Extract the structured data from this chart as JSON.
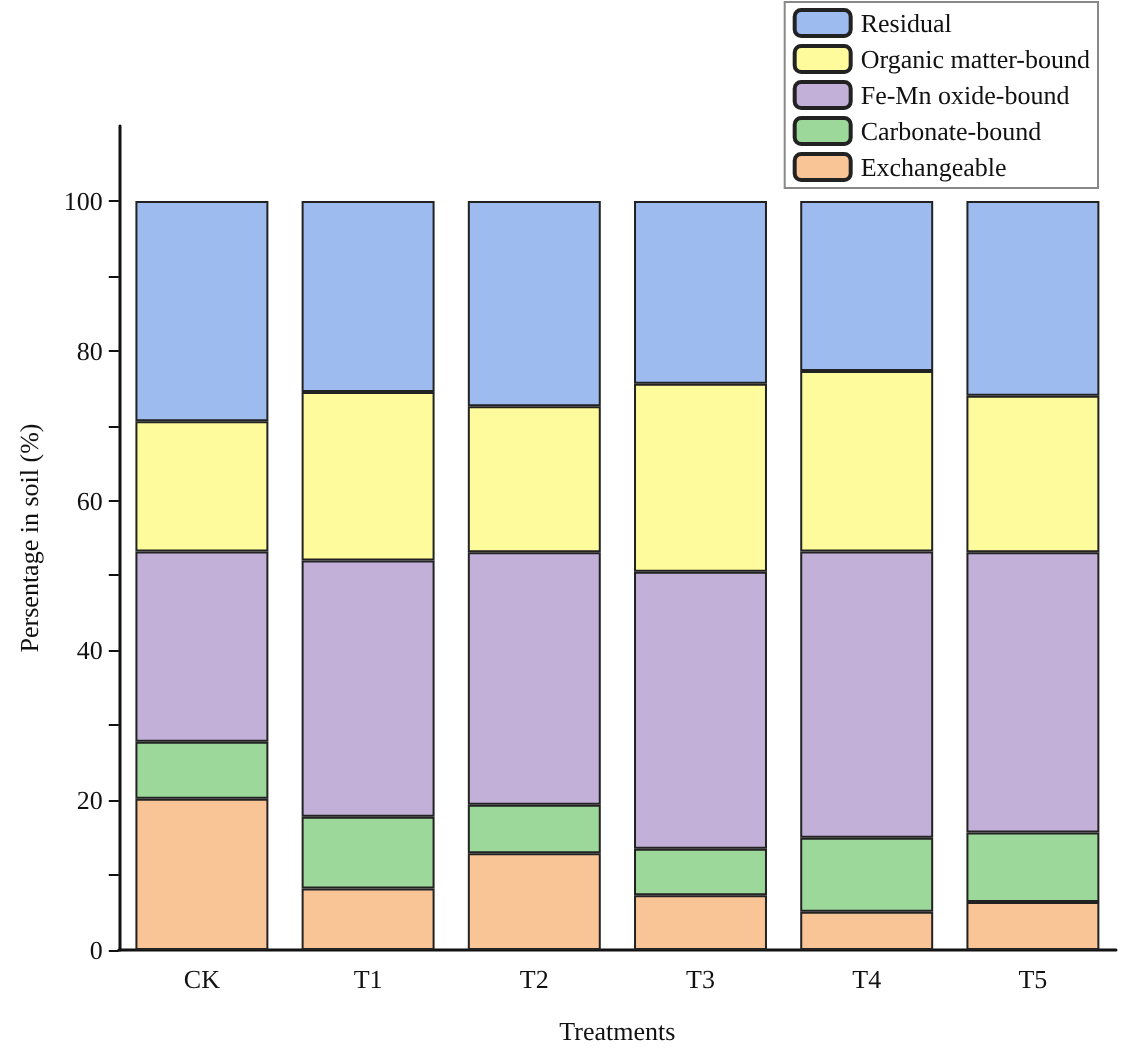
{
  "chart_data": {
    "type": "bar",
    "stacked": true,
    "xlabel": "Treatments",
    "ylabel": "Persentage in soil (%)",
    "categories": [
      "CK",
      "T1",
      "T2",
      "T3",
      "T4",
      "T5"
    ],
    "series": [
      {
        "name": "Exchangeable",
        "color": "#f9c597",
        "values": [
          20.2,
          8.2,
          12.9,
          7.3,
          5.1,
          6.4
        ]
      },
      {
        "name": "Carbonate-bound",
        "color": "#9dd89b",
        "values": [
          7.6,
          9.6,
          6.5,
          6.2,
          9.9,
          9.3
        ]
      },
      {
        "name": "Fe-Mn oxide-bound",
        "color": "#c3b0d8",
        "values": [
          25.4,
          34.2,
          33.7,
          37.0,
          38.2,
          37.4
        ]
      },
      {
        "name": "Organic matter-bound",
        "color": "#fdfb9b",
        "values": [
          17.4,
          22.5,
          19.5,
          25.1,
          24.1,
          20.9
        ]
      },
      {
        "name": "Residual",
        "color": "#9dbbef",
        "values": [
          29.4,
          25.5,
          27.4,
          24.4,
          22.7,
          26.0
        ]
      }
    ],
    "ylim": [
      0,
      110
    ],
    "yticks": [
      0,
      {
        "value": 10,
        "label": null
      },
      20,
      {
        "value": 30,
        "label": null
      },
      40,
      {
        "value": 50,
        "label": null
      },
      60,
      {
        "value": 70,
        "label": null
      },
      80,
      {
        "value": 90,
        "label": null
      },
      100
    ],
    "grid": false,
    "legend": "top right"
  }
}
